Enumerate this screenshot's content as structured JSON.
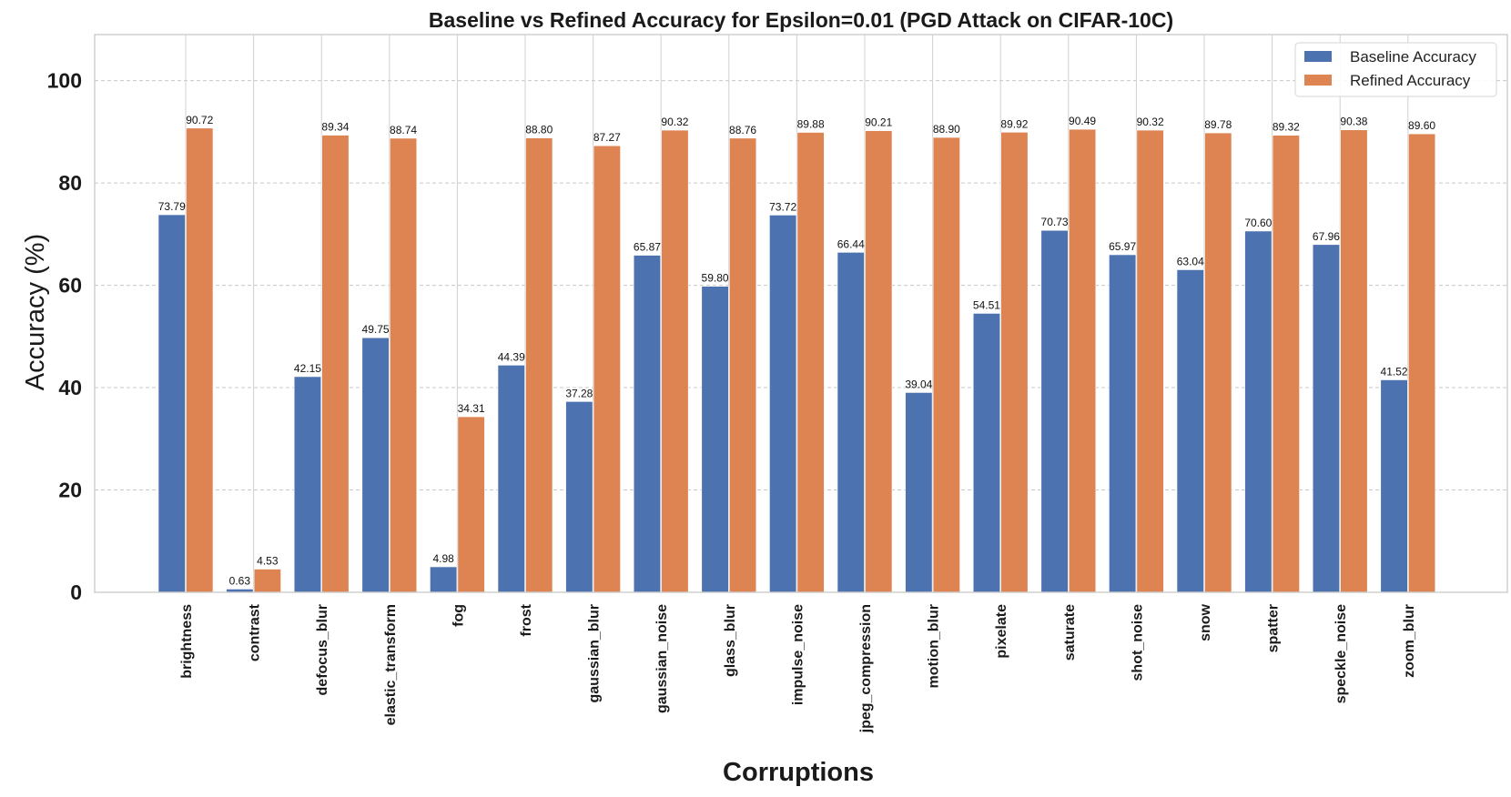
{
  "chart_data": {
    "type": "bar",
    "title": "Baseline vs Refined Accuracy for Epsilon=0.01 (PGD Attack on CIFAR-10C)",
    "xlabel": "Corruptions",
    "ylabel": "Accuracy (%)",
    "ylim": [
      0,
      109
    ],
    "yticks": [
      0,
      20,
      40,
      60,
      80,
      100
    ],
    "grid": true,
    "legend_position": "top-right",
    "categories": [
      "brightness",
      "contrast",
      "defocus_blur",
      "elastic_transform",
      "fog",
      "frost",
      "gaussian_blur",
      "gaussian_noise",
      "glass_blur",
      "impulse_noise",
      "jpeg_compression",
      "motion_blur",
      "pixelate",
      "saturate",
      "shot_noise",
      "snow",
      "spatter",
      "speckle_noise",
      "zoom_blur"
    ],
    "series": [
      {
        "name": "Baseline Accuracy",
        "color": "#4c72b0",
        "values": [
          73.79,
          0.63,
          42.15,
          49.75,
          4.98,
          44.39,
          37.28,
          65.87,
          59.8,
          73.72,
          66.44,
          39.04,
          54.51,
          70.73,
          65.97,
          63.04,
          70.6,
          67.96,
          41.52
        ],
        "labels": [
          "73.79",
          "0.63",
          "42.15",
          "49.75",
          "4.98",
          "44.39",
          "37.28",
          "65.87",
          "59.80",
          "73.72",
          "66.44",
          "39.04",
          "54.51",
          "70.73",
          "65.97",
          "63.04",
          "70.60",
          "67.96",
          "41.52"
        ]
      },
      {
        "name": "Refined Accuracy",
        "color": "#dd8452",
        "values": [
          90.72,
          4.53,
          89.34,
          88.74,
          34.31,
          88.8,
          87.27,
          90.32,
          88.76,
          89.88,
          90.21,
          88.9,
          89.92,
          90.49,
          90.32,
          89.78,
          89.32,
          90.38,
          89.6
        ],
        "labels": [
          "90.72",
          "4.53",
          "89.34",
          "88.74",
          "34.31",
          "88.80",
          "87.27",
          "90.32",
          "88.76",
          "89.88",
          "90.21",
          "88.90",
          "89.92",
          "90.49",
          "90.32",
          "89.78",
          "89.32",
          "90.38",
          "89.60"
        ]
      }
    ]
  }
}
